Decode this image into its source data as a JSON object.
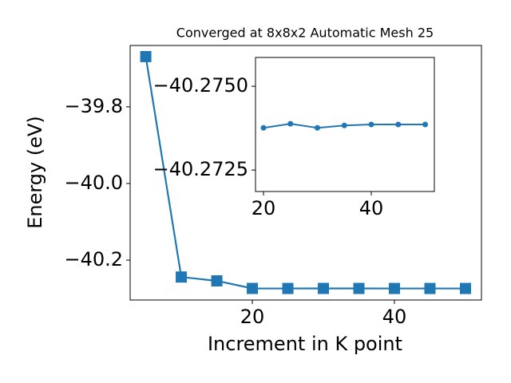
{
  "chart_data": [
    {
      "type": "line",
      "title": "Converged at 8x8x2 Automatic Mesh 25",
      "x_label": "Increment in K point",
      "y_label": "Energy (eV)",
      "xlim": [
        2.8,
        52.25
      ],
      "ylim": [
        -40.304,
        -39.64
      ],
      "xticks": [
        20,
        40
      ],
      "yticks": [
        {
          "value": -39.8,
          "label": "−39.8"
        },
        {
          "value": -40.0,
          "label": "−40.0"
        },
        {
          "value": -40.2,
          "label": "−40.2"
        }
      ],
      "series": [
        {
          "color": "#1f77b4",
          "marker": "square",
          "x": [
            5,
            10,
            15,
            20,
            25,
            30,
            35,
            40,
            45,
            50
          ],
          "values": [
            -39.669,
            -40.244,
            -40.254,
            -40.2738,
            -40.2739,
            -40.2738,
            -40.2738,
            -40.2739,
            -40.2739,
            -40.2739
          ]
        }
      ]
    },
    {
      "type": "line",
      "xlim": [
        18.52,
        51.7
      ],
      "ylim": [
        -40.27186,
        -40.27586
      ],
      "xticks": [
        20,
        40
      ],
      "yticks": [
        {
          "value": -40.275,
          "label": "−40.2750"
        },
        {
          "value": -40.2725,
          "label": "−40.2725"
        }
      ],
      "series": [
        {
          "color": "#1f77b4",
          "marker": "circle",
          "x": [
            20,
            25,
            30,
            35,
            40,
            45,
            50
          ],
          "values": [
            -40.27376,
            -40.27388,
            -40.27376,
            -40.27383,
            -40.27386,
            -40.27386,
            -40.27386
          ]
        }
      ]
    }
  ]
}
